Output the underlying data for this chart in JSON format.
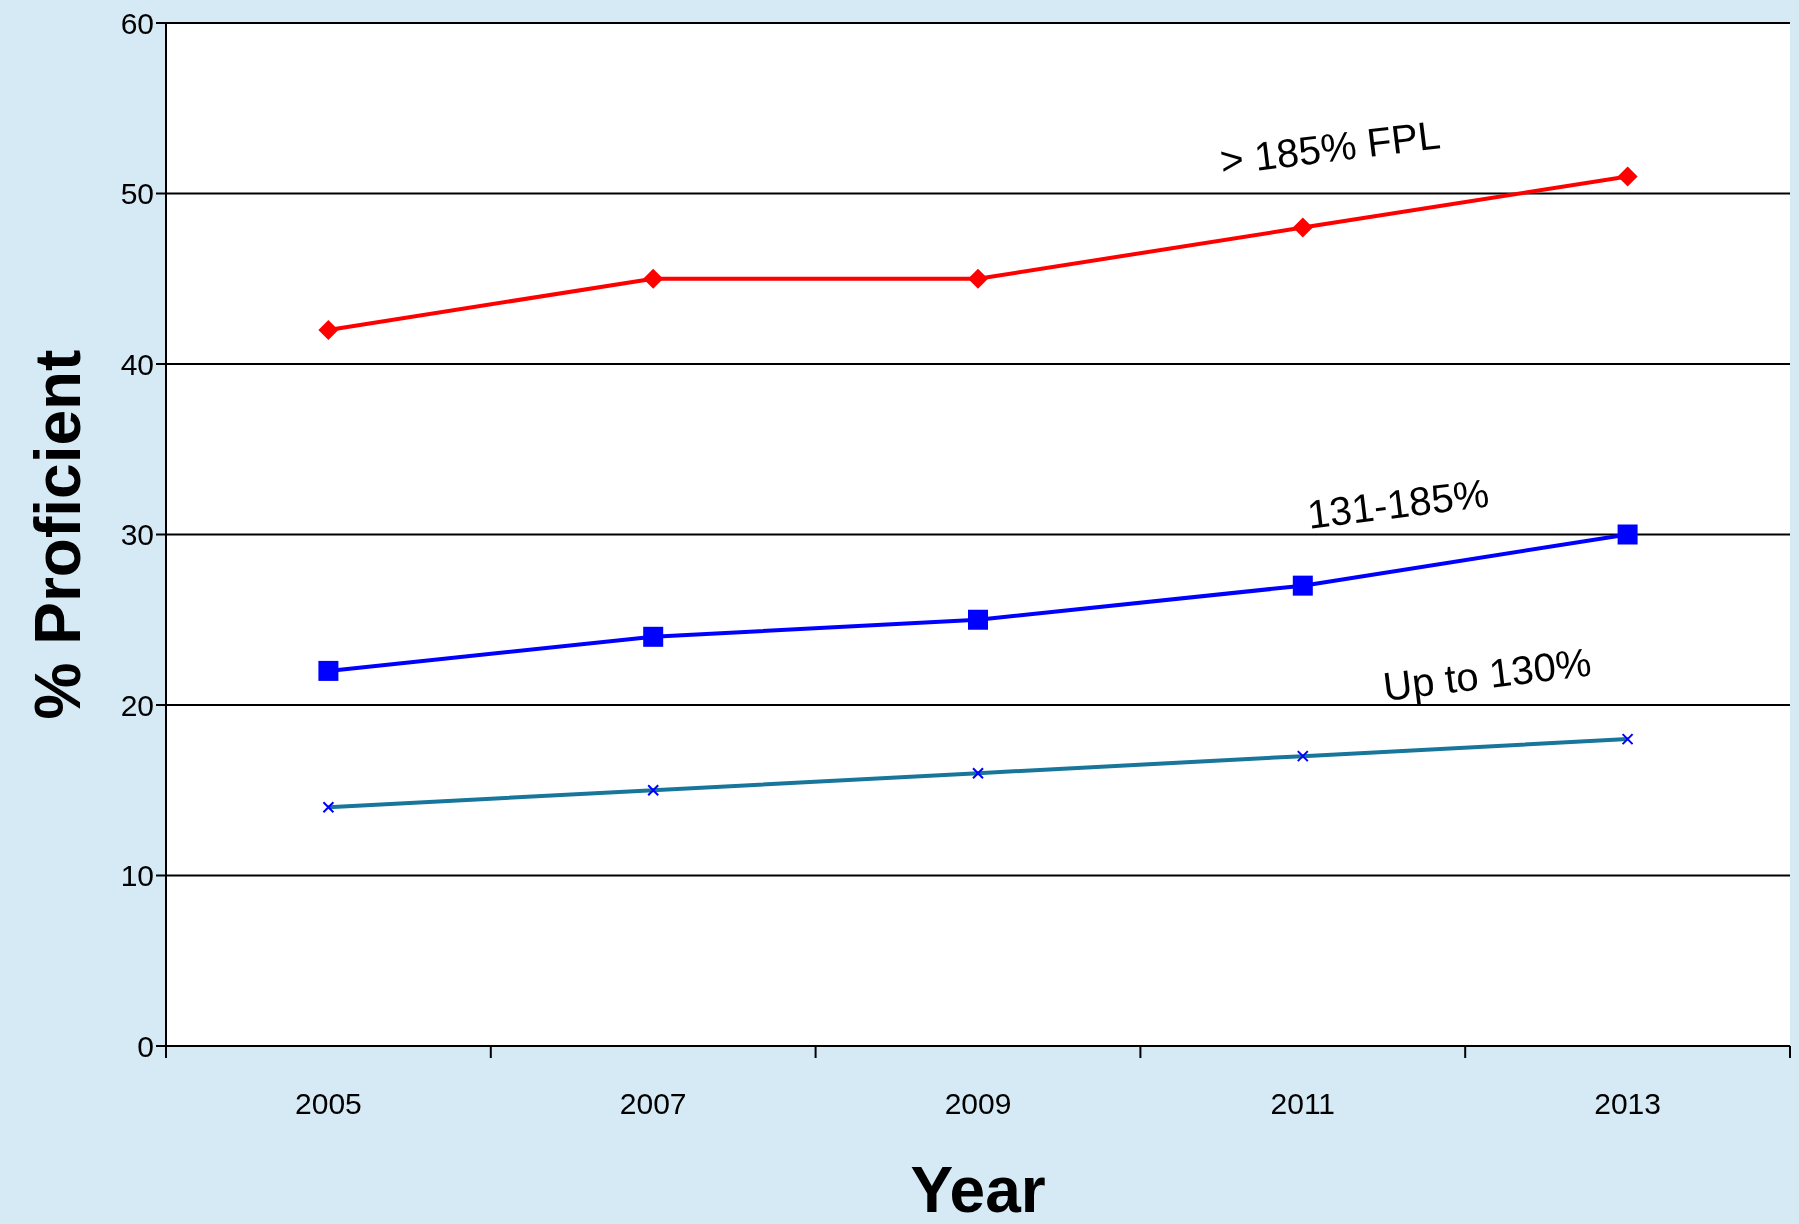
{
  "chart_data": {
    "type": "line",
    "xlabel": "Year",
    "ylabel": "% Proficient",
    "categories": [
      "2005",
      "2007",
      "2009",
      "2011",
      "2013"
    ],
    "series": [
      {
        "name": "> 185% FPL",
        "color": "#ff0000",
        "marker": "diamond",
        "values": [
          42,
          45,
          45,
          48,
          51
        ]
      },
      {
        "name": "131-185%",
        "color": "#0000ff",
        "marker": "square",
        "values": [
          22,
          24,
          25,
          27,
          30
        ]
      },
      {
        "name": "Up to 130%",
        "color": "#17769a",
        "marker": "cross",
        "values": [
          14,
          15,
          16,
          17,
          18
        ]
      }
    ],
    "ylim": [
      0,
      60
    ],
    "yticks": [
      0,
      10,
      20,
      30,
      40,
      50,
      60
    ],
    "grid": "y",
    "legend": false
  }
}
